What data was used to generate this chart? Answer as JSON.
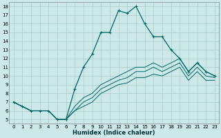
{
  "xlabel": "Humidex (Indice chaleur)",
  "background_color": "#cce8e8",
  "grid_color": "#aacccc",
  "line_color": "#006666",
  "xlim": [
    -0.5,
    23.5
  ],
  "ylim": [
    4.5,
    18.5
  ],
  "xticks": [
    0,
    1,
    2,
    3,
    4,
    5,
    6,
    7,
    8,
    9,
    10,
    11,
    12,
    13,
    14,
    15,
    16,
    17,
    18,
    19,
    20,
    21,
    22,
    23
  ],
  "yticks": [
    5,
    6,
    7,
    8,
    9,
    10,
    11,
    12,
    13,
    14,
    15,
    16,
    17,
    18
  ],
  "series": [
    {
      "x": [
        0,
        1,
        2,
        3,
        4,
        5,
        6,
        7,
        8,
        9,
        10,
        11,
        12,
        13,
        14,
        15,
        16,
        17,
        18,
        19,
        20,
        21,
        22,
        23
      ],
      "y": [
        7.0,
        6.5,
        6.0,
        6.0,
        6.0,
        5.0,
        5.0,
        8.5,
        11.0,
        12.5,
        15.0,
        15.0,
        17.5,
        17.2,
        18.0,
        16.0,
        14.5,
        14.5,
        13.0,
        12.0,
        10.5,
        11.5,
        10.5,
        10.0
      ],
      "marker": true,
      "linewidth": 0.9
    },
    {
      "x": [
        0,
        1,
        2,
        3,
        4,
        5,
        6,
        7,
        8,
        9,
        10,
        11,
        12,
        13,
        14,
        15,
        16,
        17,
        18,
        19,
        20,
        21,
        22,
        23
      ],
      "y": [
        7.0,
        6.5,
        6.0,
        6.0,
        6.0,
        5.0,
        5.0,
        6.5,
        7.5,
        8.0,
        9.0,
        9.5,
        10.0,
        10.5,
        11.0,
        11.0,
        11.5,
        11.0,
        11.5,
        12.0,
        10.5,
        11.5,
        10.5,
        10.0
      ],
      "marker": false,
      "linewidth": 0.7
    },
    {
      "x": [
        0,
        1,
        2,
        3,
        4,
        5,
        6,
        7,
        8,
        9,
        10,
        11,
        12,
        13,
        14,
        15,
        16,
        17,
        18,
        19,
        20,
        21,
        22,
        23
      ],
      "y": [
        7.0,
        6.5,
        6.0,
        6.0,
        6.0,
        5.0,
        5.0,
        6.0,
        7.0,
        7.5,
        8.5,
        9.0,
        9.5,
        9.8,
        10.5,
        10.5,
        11.0,
        10.5,
        11.0,
        11.5,
        10.0,
        11.0,
        10.0,
        9.8
      ],
      "marker": false,
      "linewidth": 0.7
    },
    {
      "x": [
        0,
        1,
        2,
        3,
        4,
        5,
        6,
        7,
        8,
        9,
        10,
        11,
        12,
        13,
        14,
        15,
        16,
        17,
        18,
        19,
        20,
        21,
        22,
        23
      ],
      "y": [
        7.0,
        6.5,
        6.0,
        6.0,
        6.0,
        5.0,
        5.0,
        6.0,
        6.5,
        7.0,
        8.0,
        8.5,
        9.0,
        9.2,
        9.8,
        9.8,
        10.2,
        10.0,
        10.5,
        11.0,
        9.5,
        10.5,
        9.5,
        9.5
      ],
      "marker": false,
      "linewidth": 0.7
    }
  ]
}
